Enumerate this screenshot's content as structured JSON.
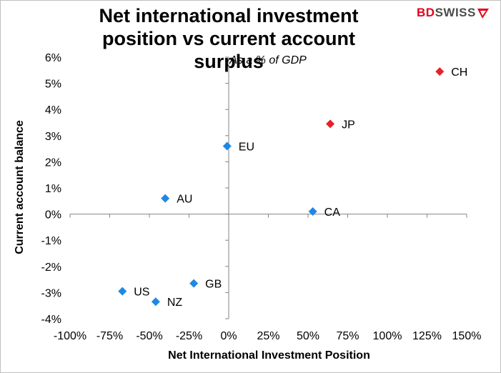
{
  "title_line1": "Net international investment",
  "title_line2": "position vs current account surplus",
  "logo": {
    "part1": "BD",
    "part2": "SWISS"
  },
  "chart_data": {
    "type": "scatter",
    "title": "Net international investment position vs current account surplus",
    "subtitle": "As a % of GDP",
    "xlabel": "Net International Investment Position",
    "ylabel": "Current account balance",
    "xlim": [
      -100,
      150
    ],
    "ylim": [
      -4,
      6
    ],
    "x_ticks": [
      "-100%",
      "-75%",
      "-50%",
      "-25%",
      "0%",
      "25%",
      "50%",
      "75%",
      "100%",
      "125%",
      "150%"
    ],
    "y_ticks": [
      "6%",
      "5%",
      "4%",
      "3%",
      "2%",
      "1%",
      "0%",
      "-1%",
      "-2%",
      "-3%",
      "-4%"
    ],
    "grid": false,
    "points": [
      {
        "label": "CH",
        "x": 133,
        "y": 5.45,
        "color": "#e8202a"
      },
      {
        "label": "JP",
        "x": 64,
        "y": 3.45,
        "color": "#e8202a"
      },
      {
        "label": "EU",
        "x": -1,
        "y": 2.6,
        "color": "#1e88e5"
      },
      {
        "label": "AU",
        "x": -40,
        "y": 0.6,
        "color": "#1e88e5"
      },
      {
        "label": "CA",
        "x": 53,
        "y": 0.1,
        "color": "#1e88e5"
      },
      {
        "label": "GB",
        "x": -22,
        "y": -2.65,
        "color": "#1e88e5"
      },
      {
        "label": "US",
        "x": -67,
        "y": -2.95,
        "color": "#1e88e5"
      },
      {
        "label": "NZ",
        "x": -46,
        "y": -3.35,
        "color": "#1e88e5"
      }
    ]
  }
}
